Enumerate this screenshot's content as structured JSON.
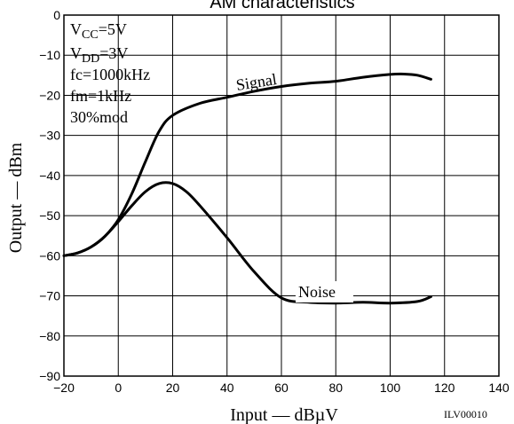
{
  "chart_data": {
    "type": "line",
    "title": "AM characteristics",
    "xlabel": "Input — dBµV",
    "ylabel": "Output — dBm",
    "xlim": [
      -20,
      140
    ],
    "ylim": [
      -90,
      0
    ],
    "x_ticks": [
      -20,
      0,
      20,
      40,
      60,
      80,
      100,
      120,
      140
    ],
    "y_ticks": [
      0,
      -10,
      -20,
      -30,
      -40,
      -50,
      -60,
      -70,
      -80,
      -90
    ],
    "grid": true,
    "conditions": [
      "5V",
      "3V",
      "fc=1000kHz",
      "fm=1kHz",
      "30%mod"
    ],
    "condition_labels": {
      "vcc": {
        "main": "V",
        "sub": "CC",
        "value": "=5V"
      },
      "vdd": {
        "main": "V",
        "sub": "DD",
        "value": "=3V"
      }
    },
    "figure_code": "ILV00010",
    "series": [
      {
        "name": "Signal",
        "x": [
          -20,
          -15,
          -10,
          -5,
          0,
          5,
          10,
          15,
          20,
          30,
          40,
          50,
          60,
          70,
          80,
          90,
          100,
          105,
          110,
          115
        ],
        "y": [
          -60,
          -59.3,
          -57.8,
          -55.2,
          -51,
          -44.5,
          -36.5,
          -29,
          -25,
          -22,
          -20.5,
          -19,
          -17.8,
          -17,
          -16.5,
          -15.5,
          -14.8,
          -14.7,
          -15,
          -16
        ]
      },
      {
        "name": "Noise",
        "x": [
          -20,
          -15,
          -10,
          -5,
          0,
          5,
          10,
          15,
          20,
          25,
          30,
          40,
          50,
          60,
          70,
          80,
          90,
          100,
          110,
          115
        ],
        "y": [
          -60,
          -59.3,
          -57.8,
          -55.2,
          -51.5,
          -47.5,
          -44,
          -42,
          -42,
          -44,
          -47.5,
          -55.5,
          -64,
          -70.5,
          -71.6,
          -71.8,
          -71.6,
          -71.8,
          -71.4,
          -70.2
        ]
      }
    ]
  }
}
